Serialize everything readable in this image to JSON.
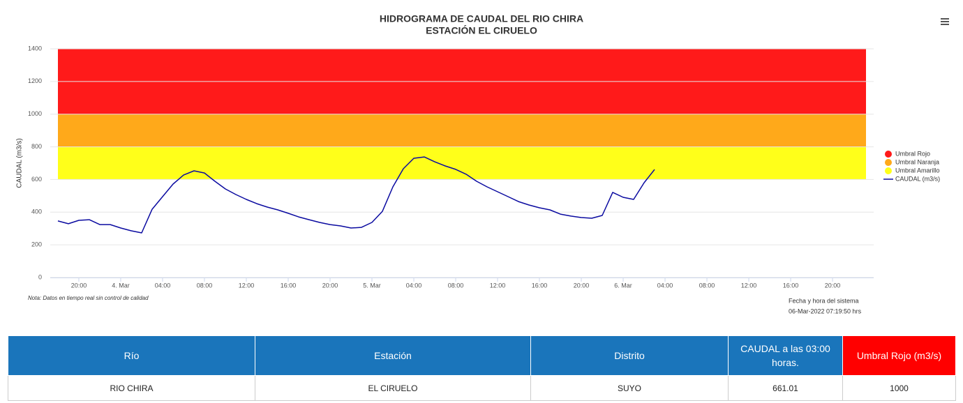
{
  "chart_data": {
    "type": "line",
    "title": "HIDROGRAMA DE CAUDAL DEL RIO CHIRA",
    "subtitle": "ESTACIÓN EL CIRUELO",
    "y_label": "CAUDAL (m3/s)",
    "note": "Nota: Datos en tiempo real sin control de calidad",
    "system_time_label": "Fecha y hora del sistema",
    "system_time": "06-Mar-2022 07:19:50 hrs",
    "x": [
      -6,
      -5,
      -4,
      -3,
      -2,
      -1,
      0,
      1,
      2,
      3,
      4,
      5,
      6,
      7,
      8,
      9,
      10,
      11,
      12,
      13,
      14,
      15,
      16,
      17,
      18,
      19,
      20,
      21,
      22,
      23,
      24,
      25,
      26,
      27,
      28,
      29,
      30,
      31,
      32,
      33,
      34,
      35,
      36,
      37,
      38,
      39,
      40,
      41,
      42,
      43,
      44,
      45,
      46,
      47,
      48,
      49,
      50,
      51
    ],
    "series": [
      {
        "name": "CAUDAL (m3/s)",
        "color": "#0a0aa0",
        "values": [
          346,
          329,
          350,
          354,
          324,
          324,
          303,
          286,
          273,
          418,
          495,
          572,
          627,
          653,
          640,
          589,
          542,
          508,
          478,
          452,
          431,
          414,
          393,
          371,
          354,
          337,
          324,
          316,
          303,
          307,
          337,
          405,
          555,
          666,
          730,
          738,
          708,
          683,
          662,
          632,
          589,
          555,
          525,
          495,
          465,
          444,
          427,
          414,
          388,
          376,
          367,
          363,
          380,
          521,
          491,
          478,
          580,
          661.01
        ]
      }
    ],
    "bands": [
      {
        "name": "Umbral Rojo",
        "color": "#ff1a1a",
        "from": 1000,
        "to": 1400
      },
      {
        "name": "Umbral Naranja",
        "color": "#ffa91a",
        "from": 800,
        "to": 1000
      },
      {
        "name": "Umbral Amarillo",
        "color": "#ffff1a",
        "from": 600,
        "to": 800
      }
    ],
    "xlim": [
      -6.73,
      71.93
    ],
    "xticks": [
      {
        "value": -4,
        "label": "20:00"
      },
      {
        "value": 0,
        "label": "4. Mar"
      },
      {
        "value": 4,
        "label": "04:00"
      },
      {
        "value": 8,
        "label": "08:00"
      },
      {
        "value": 12,
        "label": "12:00"
      },
      {
        "value": 16,
        "label": "16:00"
      },
      {
        "value": 20,
        "label": "20:00"
      },
      {
        "value": 24,
        "label": "5. Mar"
      },
      {
        "value": 28,
        "label": "04:00"
      },
      {
        "value": 32,
        "label": "08:00"
      },
      {
        "value": 36,
        "label": "12:00"
      },
      {
        "value": 40,
        "label": "16:00"
      },
      {
        "value": 44,
        "label": "20:00"
      },
      {
        "value": 48,
        "label": "6. Mar"
      },
      {
        "value": 52,
        "label": "04:00"
      },
      {
        "value": 56,
        "label": "08:00"
      },
      {
        "value": 60,
        "label": "12:00"
      },
      {
        "value": 64,
        "label": "16:00"
      },
      {
        "value": 68,
        "label": "20:00"
      }
    ],
    "ylim": [
      0,
      1400
    ],
    "yticks": [
      0,
      200,
      400,
      600,
      800,
      1000,
      1200,
      1400
    ],
    "grid": true,
    "legend": "right"
  },
  "table": {
    "headers": [
      "Río",
      "Estación",
      "Distrito",
      "CAUDAL a las 03:00 horas.",
      "Umbral Rojo (m3/s)"
    ],
    "rows": [
      [
        "RIO CHIRA",
        "EL CIRUELO",
        "SUYO",
        661.01,
        1000
      ]
    ]
  }
}
